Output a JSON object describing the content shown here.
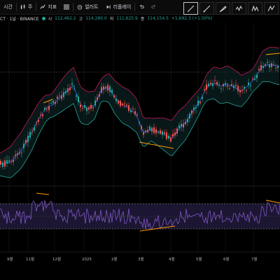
{
  "toolbar": {
    "interval_label": "시간",
    "chart_type_label": "주",
    "indicators_label": "지표",
    "alert_label": "얼러트",
    "replay_label": "리플레이"
  },
  "legend": {
    "symbol_text": "CT · 1날 · BINANCE",
    "open_label": "시",
    "open_value": "112,462.2",
    "high_label": "고",
    "high_value": "114,280.0",
    "low_label": "저",
    "low_value": "111,625.9",
    "close_label": "종",
    "close_value": "114,154.5",
    "change_value": "+1,692.3 (+1.50%)"
  },
  "xaxis": {
    "labels": [
      "9월",
      "11월",
      "12월",
      "2025",
      "2월",
      "3월",
      "4월",
      "5월",
      "6월",
      "7월"
    ]
  },
  "colors": {
    "up": "#26a69a",
    "down": "#ef5350",
    "band_upper": "#c2185b",
    "band_basis": "#2962ff",
    "band_lower": "#26a69a",
    "rsi_line": "#7e57c2",
    "trendline": "#ff9800"
  },
  "icons": {
    "drawing_tools": [
      "trend-line-icon",
      "ray-icon",
      "brush-icon",
      "wave-icon",
      "pattern-icon",
      "fib-icon"
    ]
  }
}
